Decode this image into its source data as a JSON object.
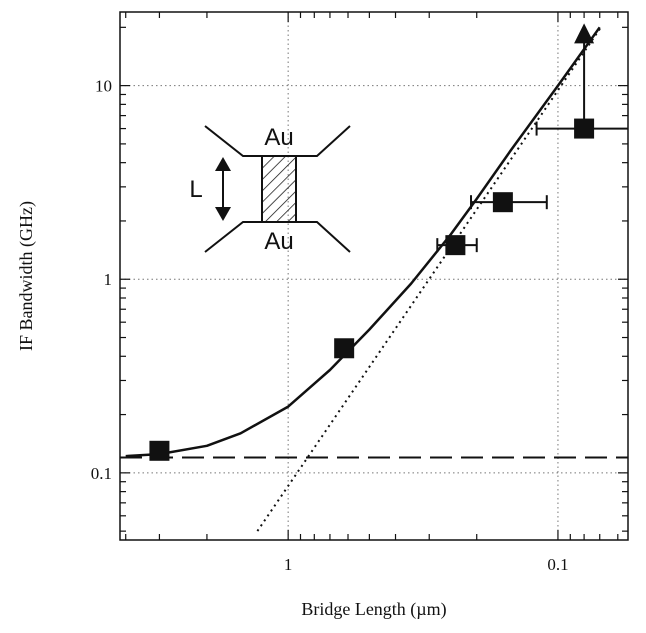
{
  "chart_data": {
    "type": "scatter",
    "title": "",
    "xlabel": "Bridge Length (µm)",
    "ylabel": "IF Bandwidth (GHz)",
    "x_scale": "log",
    "x_reversed": true,
    "y_scale": "log",
    "xlim": [
      4.2,
      0.055
    ],
    "ylim": [
      0.045,
      24
    ],
    "x_ticks": [
      {
        "value": 1,
        "label": "1"
      },
      {
        "value": 0.1,
        "label": "0.1"
      }
    ],
    "y_ticks": [
      {
        "value": 0.1,
        "label": "0.1"
      },
      {
        "value": 1,
        "label": "1"
      },
      {
        "value": 10,
        "label": "10"
      }
    ],
    "grid": true,
    "series": [
      {
        "style": "markers",
        "marker": "square",
        "points": [
          {
            "x": 3.0,
            "y": 0.13
          },
          {
            "x": 0.62,
            "y": 0.44
          },
          {
            "x": 0.24,
            "y": 1.5,
            "x_err_low": 0.2,
            "x_err_high": 0.28
          },
          {
            "x": 0.16,
            "y": 2.5,
            "x_err_low": 0.11,
            "x_err_high": 0.21
          },
          {
            "x": 0.08,
            "y": 6.0,
            "x_err_low": 0.05,
            "x_err_high": 0.12,
            "arrow_up_to": 20
          }
        ]
      },
      {
        "style": "solid",
        "points": [
          [
            4.0,
            0.122
          ],
          [
            3.0,
            0.125
          ],
          [
            2.0,
            0.138
          ],
          [
            1.5,
            0.16
          ],
          [
            1.0,
            0.22
          ],
          [
            0.7,
            0.34
          ],
          [
            0.5,
            0.55
          ],
          [
            0.35,
            0.95
          ],
          [
            0.25,
            1.7
          ],
          [
            0.2,
            2.6
          ],
          [
            0.15,
            4.6
          ],
          [
            0.1,
            10.0
          ],
          [
            0.07,
            20.0
          ]
        ]
      },
      {
        "style": "dotted",
        "points": [
          [
            1.3,
            0.05
          ],
          [
            0.0693,
            20.0
          ]
        ]
      },
      {
        "style": "dashed",
        "points": [
          [
            4.2,
            0.12
          ],
          [
            0.055,
            0.12
          ]
        ]
      }
    ],
    "inset": {
      "top_label": "Au",
      "bottom_label": "Au",
      "length_label": "L"
    }
  }
}
